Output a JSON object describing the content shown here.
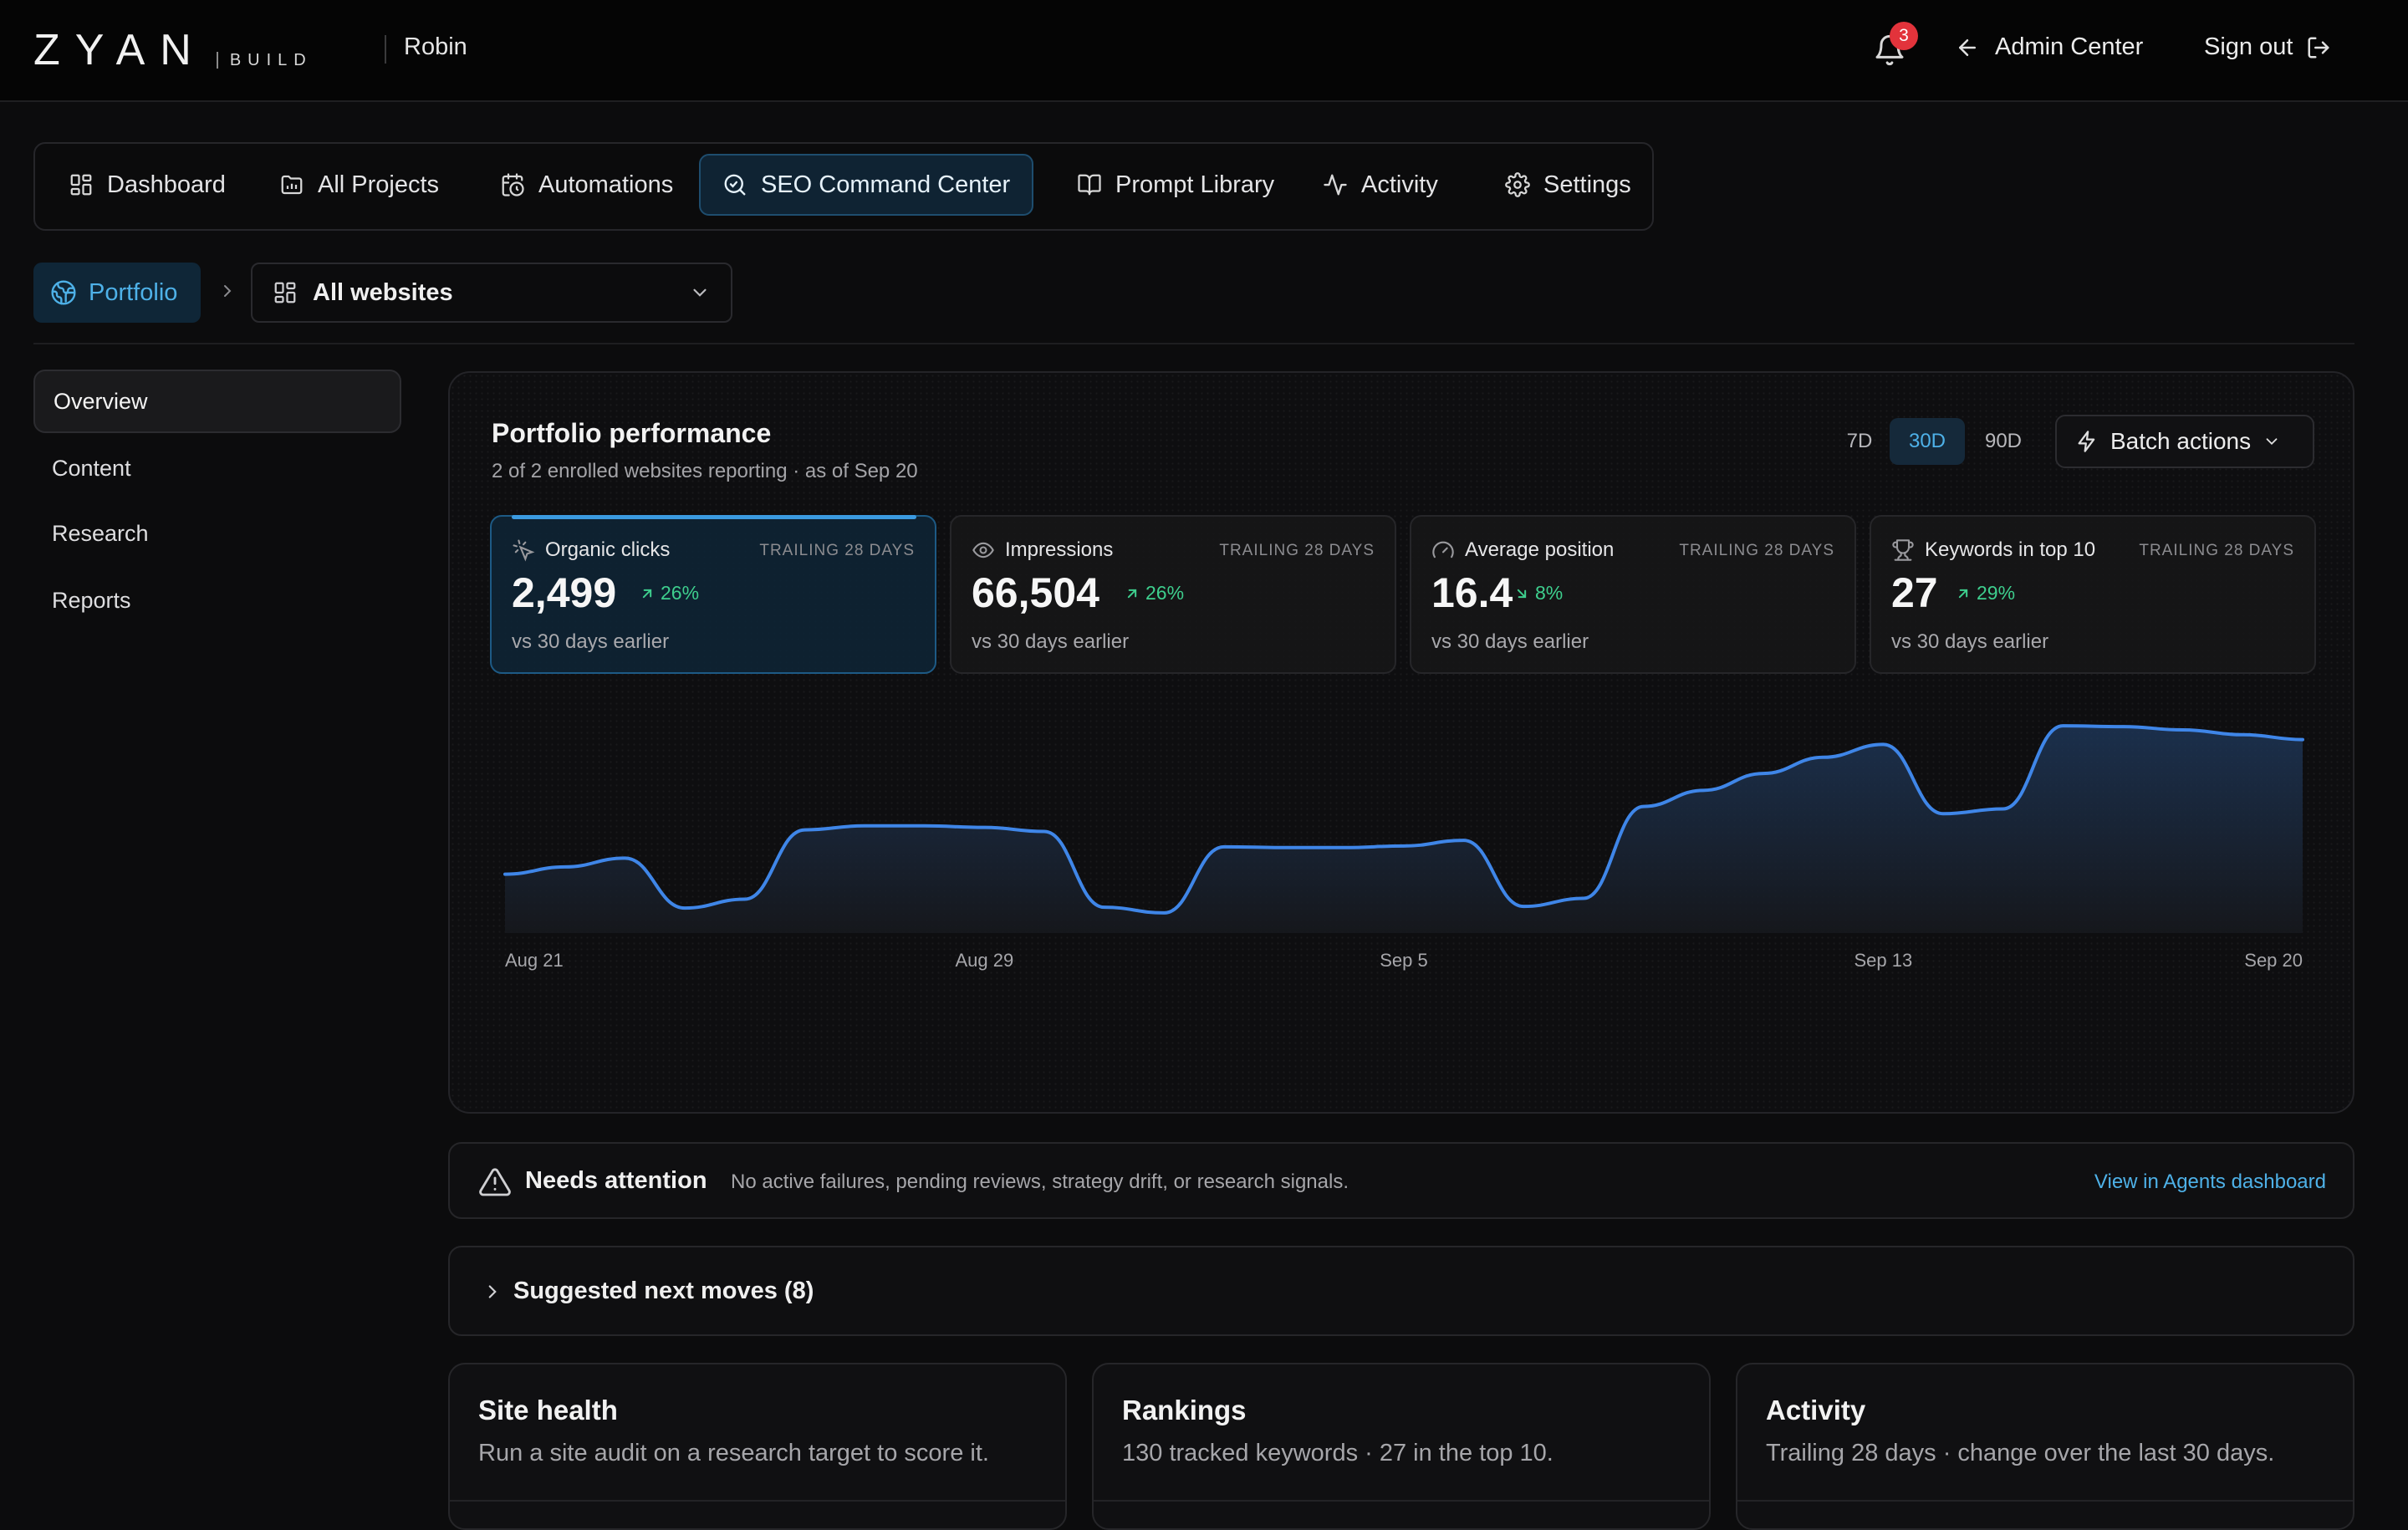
{
  "header": {
    "logo_main": "ZYAN",
    "logo_sub": "BUILD",
    "user": "Robin",
    "notifications_count": "3",
    "admin_label": "Admin Center",
    "signout_label": "Sign out"
  },
  "nav": {
    "items": [
      {
        "label": "Dashboard",
        "icon": "dashboard-icon"
      },
      {
        "label": "All Projects",
        "icon": "folder-icon"
      },
      {
        "label": "Automations",
        "icon": "calendar-clock-icon"
      },
      {
        "label": "SEO Command Center",
        "icon": "search-icon",
        "active": true
      },
      {
        "label": "Prompt Library",
        "icon": "book-icon"
      },
      {
        "label": "Activity",
        "icon": "activity-icon"
      },
      {
        "label": "Settings",
        "icon": "gear-icon"
      }
    ]
  },
  "breadcrumb": {
    "portfolio": "Portfolio",
    "site_select": "All websites"
  },
  "sidebar": {
    "items": [
      {
        "label": "Overview",
        "active": true
      },
      {
        "label": "Content"
      },
      {
        "label": "Research"
      },
      {
        "label": "Reports"
      }
    ]
  },
  "performance": {
    "title": "Portfolio performance",
    "subtitle": "2 of 2 enrolled websites reporting · as of Sep 20",
    "ranges": [
      "7D",
      "30D",
      "90D"
    ],
    "active_range": "30D",
    "batch_label": "Batch actions",
    "kpis": [
      {
        "label": "Organic clicks",
        "trailing": "TRAILING 28 DAYS",
        "value": "2,499",
        "delta": "26%",
        "direction": "up",
        "foot": "vs 30 days earlier",
        "icon": "sparkle-click-icon",
        "active": true
      },
      {
        "label": "Impressions",
        "trailing": "TRAILING 28 DAYS",
        "value": "66,504",
        "delta": "26%",
        "direction": "up",
        "foot": "vs 30 days earlier",
        "icon": "eye-icon"
      },
      {
        "label": "Average position",
        "trailing": "TRAILING 28 DAYS",
        "value": "16.4",
        "delta": "8%",
        "direction": "down",
        "foot": "vs 30 days earlier",
        "icon": "gauge-icon"
      },
      {
        "label": "Keywords in top 10",
        "trailing": "TRAILING 28 DAYS",
        "value": "27",
        "delta": "29%",
        "direction": "up",
        "foot": "vs 30 days earlier",
        "icon": "trophy-icon"
      }
    ]
  },
  "chart_data": {
    "type": "area",
    "title": "",
    "xlabel": "",
    "ylabel": "",
    "x_tick_labels": [
      "Aug 21",
      "Aug 29",
      "Sep 5",
      "Sep 13",
      "Sep 20"
    ],
    "x": [
      "Aug 21",
      "Aug 22",
      "Aug 23",
      "Aug 24",
      "Aug 25",
      "Aug 26",
      "Aug 27",
      "Aug 28",
      "Aug 29",
      "Aug 30",
      "Aug 31",
      "Sep 1",
      "Sep 2",
      "Sep 3",
      "Sep 4",
      "Sep 5",
      "Sep 6",
      "Sep 7",
      "Sep 8",
      "Sep 9",
      "Sep 10",
      "Sep 11",
      "Sep 12",
      "Sep 13",
      "Sep 14",
      "Sep 15",
      "Sep 16",
      "Sep 17",
      "Sep 18",
      "Sep 19",
      "Sep 20"
    ],
    "series": [
      {
        "values": [
          73,
          82,
          93,
          31,
          42,
          128,
          133,
          133,
          131,
          126,
          32,
          25,
          107,
          106,
          106,
          108,
          115,
          33,
          43,
          157,
          177,
          198,
          218,
          234,
          148,
          154,
          257,
          256,
          252,
          246,
          240
        ]
      }
    ],
    "ylim": [
      0,
      280
    ],
    "grid": false,
    "color": "#3f86e8"
  },
  "attention": {
    "title": "Needs attention",
    "text": "No active failures, pending reviews, strategy drift, or research signals.",
    "link": "View in Agents dashboard"
  },
  "moves": {
    "title": "Suggested next moves (8)"
  },
  "cards": [
    {
      "title": "Site health",
      "subtitle": "Run a site audit on a research target to score it."
    },
    {
      "title": "Rankings",
      "subtitle": "130 tracked keywords · 27 in the top 10."
    },
    {
      "title": "Activity",
      "subtitle": "Trailing 28 days · change over the last 30 days."
    }
  ]
}
